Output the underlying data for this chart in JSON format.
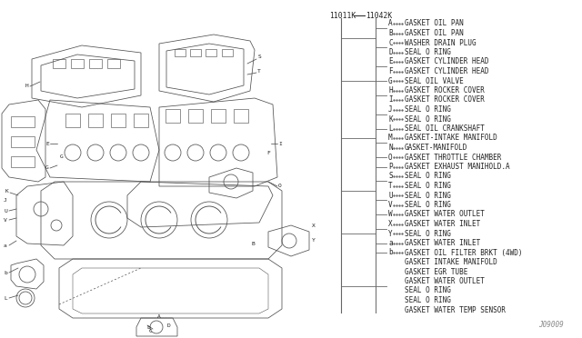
{
  "bg_color": "#ffffff",
  "legend_items": [
    [
      "A",
      "GASKET OIL PAN"
    ],
    [
      "B",
      "GASKET OIL PAN"
    ],
    [
      "C",
      "WASHER DRAIN PLUG"
    ],
    [
      "D",
      "SEAL O RING"
    ],
    [
      "E",
      "GASKET CYLINDER HEAD"
    ],
    [
      "F",
      "GASKET CYLINDER HEAD"
    ],
    [
      "G",
      "SEAL OIL VALVE"
    ],
    [
      "H",
      "GASKET ROCKER COVER"
    ],
    [
      "I",
      "GASKET ROCKER COVER"
    ],
    [
      "J",
      "SEAL O RING"
    ],
    [
      "K",
      "SEAL O RING"
    ],
    [
      "L",
      "SEAL OIL CRANKSHAFT"
    ],
    [
      "M",
      "GASKET-INTAKE MANIFOLD"
    ],
    [
      "N",
      "GASKET-MANIFOLD"
    ],
    [
      "O",
      "GASKET THROTTLE CHAMBER"
    ],
    [
      "P",
      "GASKET EXHAUST MANIHOLD.A"
    ],
    [
      "S",
      "SEAL O RING"
    ],
    [
      "T",
      "SEAL O RING"
    ],
    [
      "U",
      "SEAL O RING"
    ],
    [
      "V",
      "SEAL O RING"
    ],
    [
      "W",
      "GASKET WATER OUTLET"
    ],
    [
      "X",
      "GASKET WATER INLET"
    ],
    [
      "Y",
      "SEAL O RING"
    ],
    [
      "a",
      "GASKET WATER INLET"
    ],
    [
      "b",
      "GASKET OIL FILTER BRKT (4WD)"
    ],
    [
      "",
      "GASKET INTAKE MANIFOLD"
    ],
    [
      "",
      "GASKET EGR TUBE"
    ],
    [
      "",
      "GASKET WATER OUTLET"
    ],
    [
      "",
      "SEAL O RING"
    ],
    [
      "",
      "SEAL O RING"
    ],
    [
      "",
      "GASKET WATER TEMP SENSOR"
    ]
  ],
  "pn1": "11011K",
  "pn2": "11042K",
  "footer_text": "J09009",
  "font_size": 5.5
}
